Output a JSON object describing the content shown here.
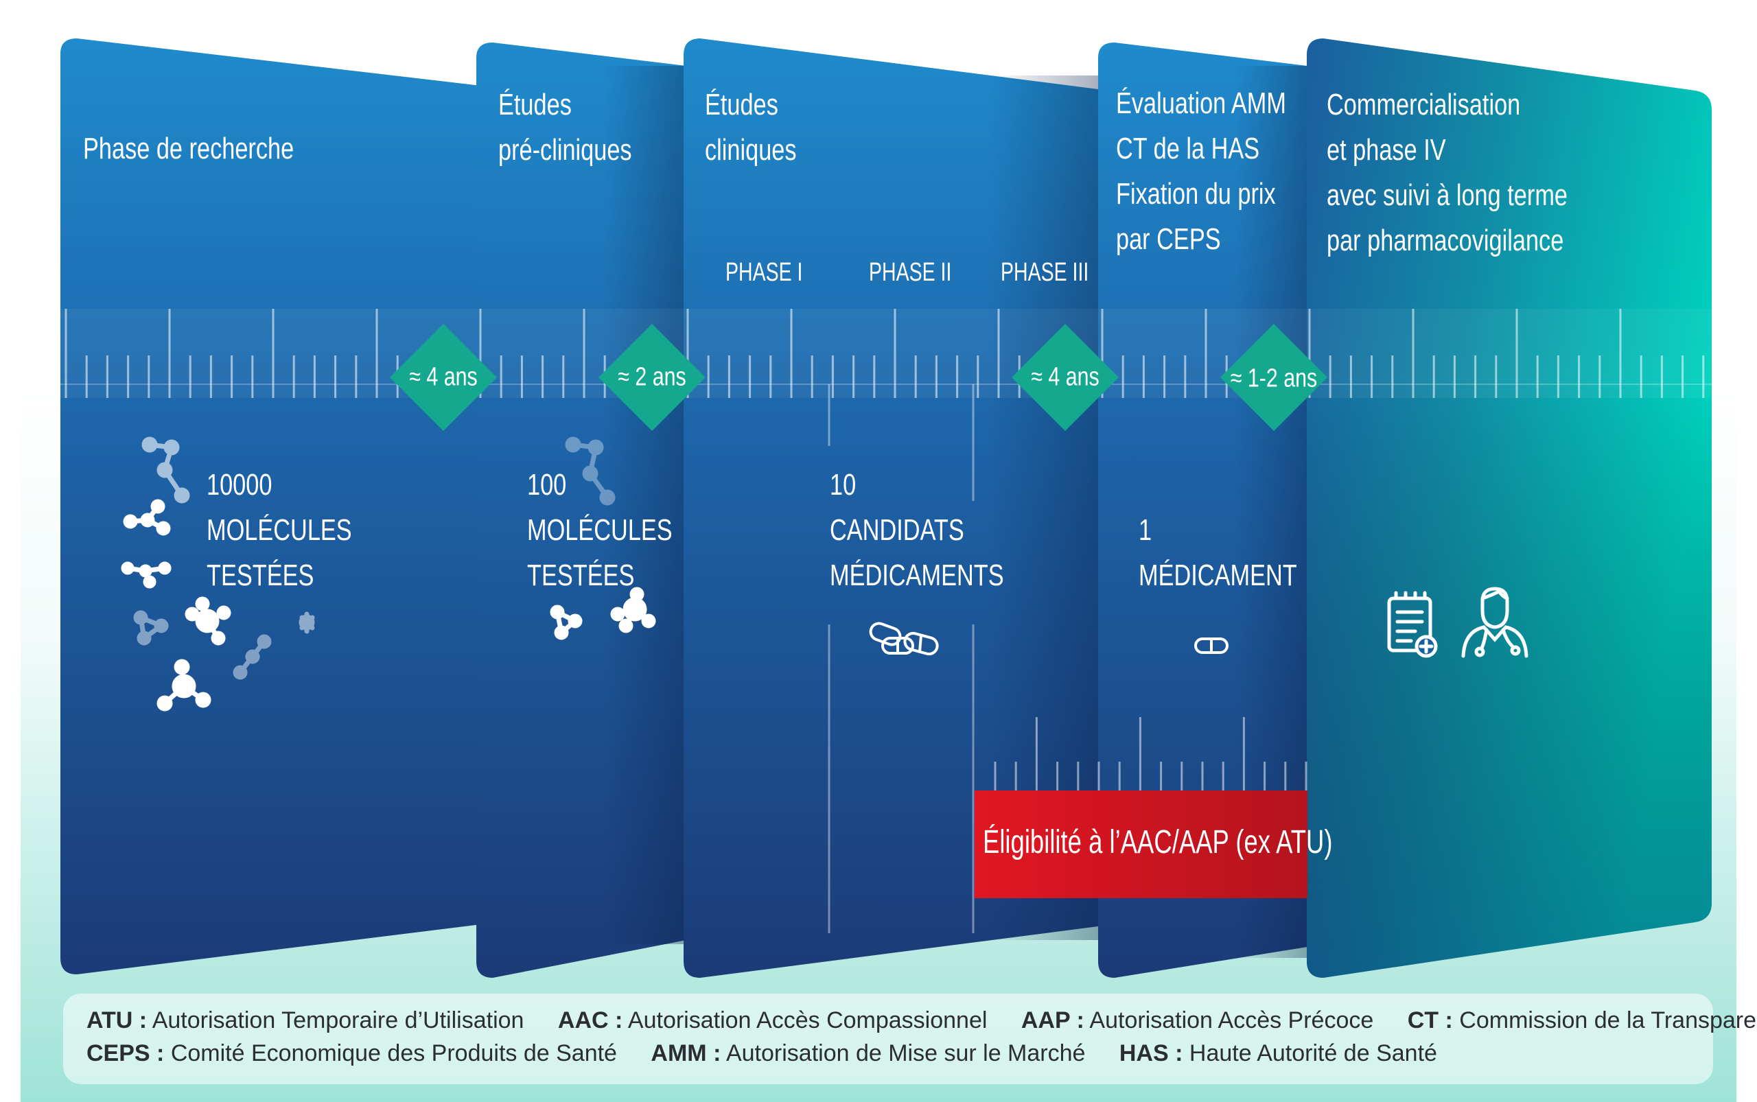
{
  "panels": [
    {
      "title": "Phase de recherche",
      "count": "10000",
      "unit": "MOLÉCULES\nTESTÉES"
    },
    {
      "title": "Études\npré-cliniques",
      "count": "100",
      "unit": "MOLÉCULES\nTESTÉES"
    },
    {
      "title": "Études\ncliniques",
      "count": "10",
      "unit": "CANDIDATS\nMÉDICAMENTS"
    },
    {
      "title": "Évaluation AMM\nCT de la HAS\nFixation du prix\npar CEPS",
      "count": "1",
      "unit": "MÉDICAMENT"
    },
    {
      "title": "Commercialisation\net phase IV\navec suivi à long terme\npar pharmacovigilance"
    }
  ],
  "clinical_phases": [
    "PHASE I",
    "PHASE II",
    "PHASE III"
  ],
  "durations": [
    "≈ 4 ans",
    "≈ 2 ans",
    "≈ 4 ans",
    "≈ 1-2 ans"
  ],
  "eligibility": "Éligibilité à l’AAC/AAP  (ex ATU)",
  "icons": [
    "molecule-icon",
    "pills-icon",
    "capsule-icon",
    "medical-report-icon",
    "doctor-icon"
  ],
  "legend": {
    "row1": [
      {
        "abbr": "ATU :",
        "text": "Autorisation Temporaire d’Utilisation"
      },
      {
        "abbr": "AAC :",
        "text": "Autorisation Accès Compassionnel"
      },
      {
        "abbr": "AAP :",
        "text": "Autorisation Accès Précoce"
      },
      {
        "abbr": "CT :",
        "text": "Commission de la Transparence"
      }
    ],
    "row2": [
      {
        "abbr": "CEPS :",
        "text": "Comité Economique des Produits de Santé"
      },
      {
        "abbr": "AMM :",
        "text": "Autorisation de Mise sur le Marché"
      },
      {
        "abbr": "HAS :",
        "text": "Haute Autorité de Santé"
      }
    ]
  },
  "colors": {
    "panel_top": "#1e8acb",
    "panel_bottom": "#1c3e7a",
    "diamond": "#14a88e",
    "eligibility": "#d9141e",
    "teal": "#00c4b3",
    "background_teal": "#aee8de"
  }
}
